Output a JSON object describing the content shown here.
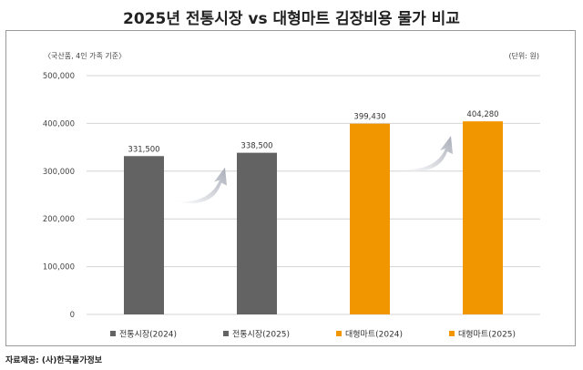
{
  "chart_data": {
    "type": "bar",
    "title": "2025년 전통시장 vs 대형마트 김장비용 물가 비교",
    "subtitle_left": "〈국산품, 4인 가족 기준〉",
    "unit_note": "(단위: 원)",
    "categories": [
      "전통시장(2024)",
      "전통시장(2025)",
      "대형마트(2024)",
      "대형마트(2025)"
    ],
    "values": [
      331500,
      338500,
      399430,
      404280
    ],
    "value_labels": [
      "331,500",
      "338,500",
      "399,430",
      "404,280"
    ],
    "colors": [
      "#636363",
      "#636363",
      "#f29600",
      "#f29600"
    ],
    "ylim": [
      0,
      500000
    ],
    "yticks": [
      0,
      100000,
      200000,
      300000,
      400000,
      500000
    ],
    "ytick_labels": [
      "0",
      "100,000",
      "200,000",
      "300,000",
      "400,000",
      "500,000"
    ],
    "grid": true,
    "legend_position": "bottom",
    "annotations": [
      "increase-arrow between 전통시장 2024 and 2025",
      "increase-arrow between 대형마트 2024 and 2025"
    ],
    "arrow_color": "#a9adb8"
  },
  "source": "자료제공: (사)한국물가정보"
}
